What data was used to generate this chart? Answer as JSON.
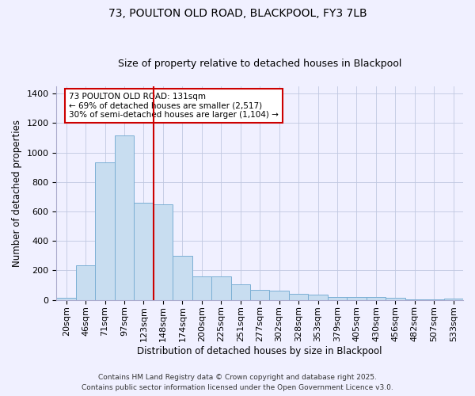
{
  "title": "73, POULTON OLD ROAD, BLACKPOOL, FY3 7LB",
  "subtitle": "Size of property relative to detached houses in Blackpool",
  "xlabel": "Distribution of detached houses by size in Blackpool",
  "ylabel": "Number of detached properties",
  "categories": [
    "20sqm",
    "46sqm",
    "71sqm",
    "97sqm",
    "123sqm",
    "148sqm",
    "174sqm",
    "200sqm",
    "225sqm",
    "251sqm",
    "277sqm",
    "302sqm",
    "328sqm",
    "353sqm",
    "379sqm",
    "405sqm",
    "430sqm",
    "456sqm",
    "482sqm",
    "507sqm",
    "533sqm"
  ],
  "values": [
    15,
    235,
    935,
    1115,
    660,
    650,
    300,
    160,
    160,
    105,
    70,
    65,
    40,
    35,
    22,
    22,
    18,
    15,
    5,
    5,
    8
  ],
  "bar_color": "#c8ddf0",
  "bar_edge_color": "#7bafd4",
  "grid_color": "#c0c8e0",
  "background_color": "#f0f0ff",
  "vline_color": "#cc0000",
  "annotation_text": "73 POULTON OLD ROAD: 131sqm\n← 69% of detached houses are smaller (2,517)\n30% of semi-detached houses are larger (1,104) →",
  "annotation_box_color": "white",
  "annotation_box_edge_color": "#cc0000",
  "ylim": [
    0,
    1450
  ],
  "yticks": [
    0,
    200,
    400,
    600,
    800,
    1000,
    1200,
    1400
  ],
  "footer_line1": "Contains HM Land Registry data © Crown copyright and database right 2025.",
  "footer_line2": "Contains public sector information licensed under the Open Government Licence v3.0.",
  "title_fontsize": 10,
  "subtitle_fontsize": 9,
  "axis_label_fontsize": 8.5,
  "tick_fontsize": 8,
  "annotation_fontsize": 7.5,
  "footer_fontsize": 6.5
}
